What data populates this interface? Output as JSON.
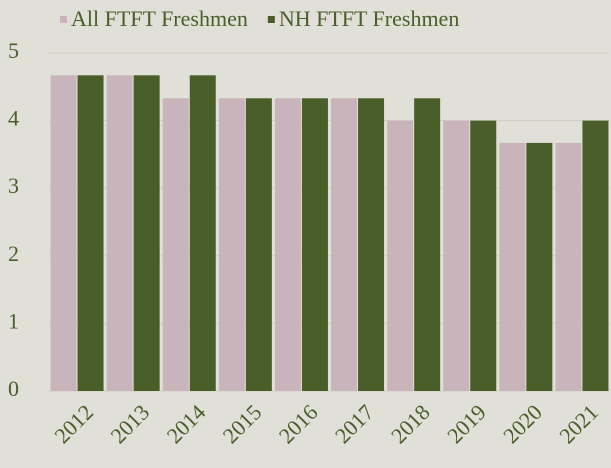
{
  "chart_data": {
    "type": "bar",
    "categories": [
      "2012",
      "2013",
      "2014",
      "2015",
      "2016",
      "2017",
      "2018",
      "2019",
      "2020",
      "2021"
    ],
    "series": [
      {
        "name": "All FTFT Freshmen",
        "color": "#c9b4bc",
        "values": [
          4.67,
          4.67,
          4.33,
          4.33,
          4.33,
          4.33,
          4.0,
          4.0,
          3.67,
          3.67
        ]
      },
      {
        "name": "NH FTFT Freshmen",
        "color": "#4a5e29",
        "values": [
          4.67,
          4.67,
          4.67,
          4.33,
          4.33,
          4.33,
          4.33,
          4.0,
          3.67,
          4.0
        ]
      }
    ],
    "ylim": [
      0,
      5
    ],
    "yticks": [
      0,
      1,
      2,
      3,
      4,
      5
    ],
    "grid": true,
    "legend": "top"
  }
}
